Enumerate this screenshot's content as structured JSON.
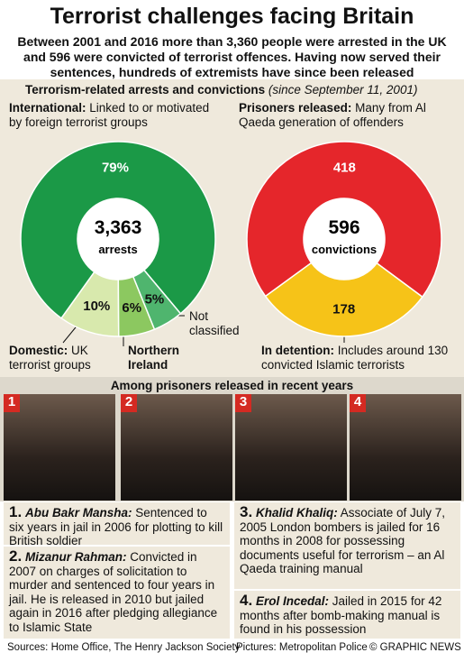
{
  "header": {
    "title": "Terrorist challenges facing Britain",
    "subtitle": "Between 2001 and 2016 more than 3,360 people were arrested in the UK and 596 were convicted of terrorist offences. Having now served their sentences, hundreds of extremists have since been released"
  },
  "section": {
    "title": "Terrorism-related arrests and convictions",
    "note": "(since September 11, 2001)"
  },
  "chart_data": [
    {
      "type": "pie",
      "center_value": "3,363",
      "center_label": "arrests",
      "categories": [
        "International",
        "Domestic",
        "Northern Ireland",
        "Not classified"
      ],
      "values": [
        79,
        10,
        6,
        5
      ],
      "value_labels": [
        "79%",
        "10%",
        "6%",
        "5%"
      ],
      "colors": [
        "#1b9947",
        "#d8e9ad",
        "#8cc860",
        "#4fb56e"
      ]
    },
    {
      "type": "pie",
      "center_value": "596",
      "center_label": "convictions",
      "categories": [
        "Prisoners released",
        "In detention"
      ],
      "values": [
        418,
        178
      ],
      "colors": [
        "#e5262b",
        "#f6c318"
      ]
    }
  ],
  "annotations": [
    {
      "label": "International:",
      "text": "Linked to or motivated by foreign terrorist groups"
    },
    {
      "label": "Domestic:",
      "text": "UK terrorist groups"
    },
    {
      "label": "Northern Ireland",
      "text": ""
    },
    {
      "label": "Not classified",
      "text": ""
    },
    {
      "label": "Prisoners released:",
      "text": "Many from Al Qaeda generation of offenders"
    },
    {
      "label": "In detention:",
      "text": "Includes around 130 convicted Islamic terrorists"
    }
  ],
  "prisoners": {
    "title": "Among prisoners released in recent years",
    "items": [
      {
        "number": "1.",
        "photo_number": "1",
        "name": "Abu Bakr Mansha:",
        "text": "Sentenced to six years in jail in 2006 for plotting to kill British soldier"
      },
      {
        "number": "2.",
        "photo_number": "2",
        "name": "Mizanur Rahman:",
        "text": "Convicted in 2007 on charges of solicitation to murder and sentenced to four years in jail. He is released in 2010 but jailed again in 2016 after pledging allegiance to Islamic State"
      },
      {
        "number": "3.",
        "photo_number": "3",
        "name": "Khalid Khaliq:",
        "text": "Associate of July 7, 2005 London bombers is jailed for 16 months in 2008 for possessing documents useful for terrorism – an Al Qaeda training manual"
      },
      {
        "number": "4.",
        "photo_number": "4",
        "name": "Erol Incedal:",
        "text": "Jailed in 2015 for 42 months after bomb-making manual is found in his possession"
      }
    ]
  },
  "footer": {
    "sources": "Sources: Home Office, The Henry Jackson Society",
    "pictures": "Pictures: Metropolitan Police",
    "copyright": "© GRAPHIC NEWS"
  }
}
